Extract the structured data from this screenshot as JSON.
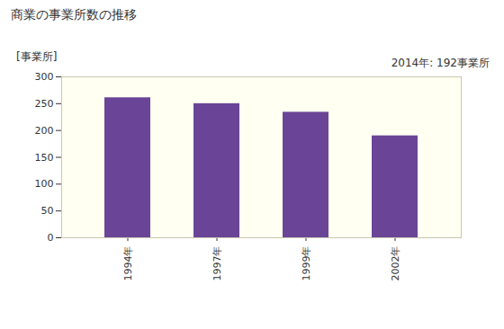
{
  "chart_data": {
    "type": "bar",
    "title": "商業の事業所数の推移",
    "y_label": "[事業所]",
    "annotation": "2014年: 192事業所",
    "categories": [
      "1994年",
      "1997年",
      "1999年",
      "2002年"
    ],
    "values": [
      261,
      250,
      234,
      190
    ],
    "color": "#6a4597",
    "ylim": [
      0,
      300
    ],
    "yticks": [
      0,
      50,
      100,
      150,
      200,
      250,
      300
    ],
    "grid": false
  }
}
